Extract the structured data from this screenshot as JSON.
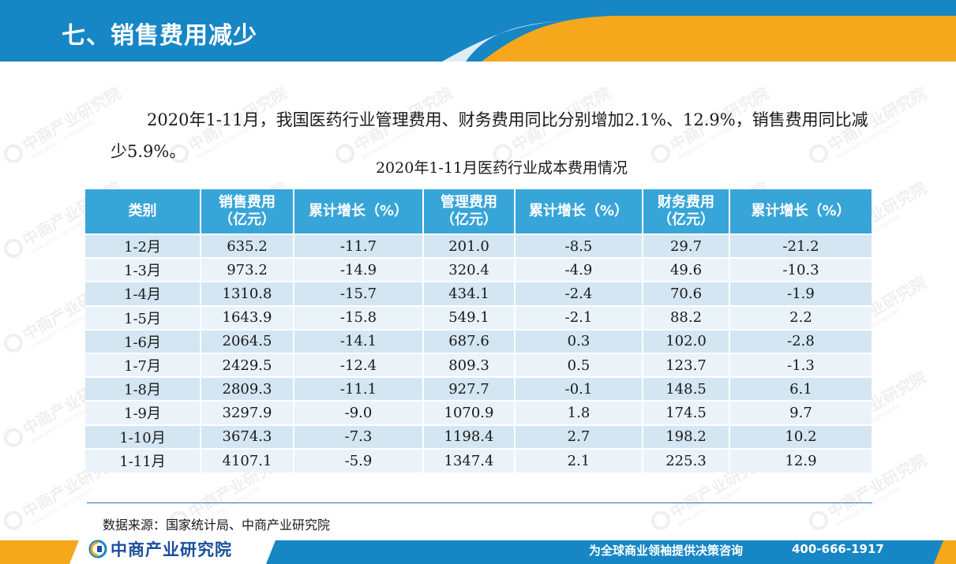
{
  "header": {
    "title": "七、销售费用减少"
  },
  "intro": {
    "text": "2020年1-11月，我国医药行业管理费用、财务费用同比分别增加2.1%、12.9%，销售费用同比减少5.9%。"
  },
  "table": {
    "caption": "2020年1-11月医药行业成本费用情况",
    "headers": [
      "类别",
      "销售费用\n（亿元）",
      "累计增长（%）",
      "管理费用\n（亿元）",
      "累计增长（%）",
      "财务费用\n（亿元）",
      "累计增长（%）"
    ],
    "rows": [
      [
        "1-2月",
        "635.2",
        "-11.7",
        "201.0",
        "-8.5",
        "29.7",
        "-21.2"
      ],
      [
        "1-3月",
        "973.2",
        "-14.9",
        "320.4",
        "-4.9",
        "49.6",
        "-10.3"
      ],
      [
        "1-4月",
        "1310.8",
        "-15.7",
        "434.1",
        "-2.4",
        "70.6",
        "-1.9"
      ],
      [
        "1-5月",
        "1643.9",
        "-15.8",
        "549.1",
        "-2.1",
        "88.2",
        "2.2"
      ],
      [
        "1-6月",
        "2064.5",
        "-14.1",
        "687.6",
        "0.3",
        "102.0",
        "-2.8"
      ],
      [
        "1-7月",
        "2429.5",
        "-12.4",
        "809.3",
        "0.5",
        "123.7",
        "-1.3"
      ],
      [
        "1-8月",
        "2809.3",
        "-11.1",
        "927.7",
        "-0.1",
        "148.5",
        "6.1"
      ],
      [
        "1-9月",
        "3297.9",
        "-9.0",
        "1070.9",
        "1.8",
        "174.5",
        "9.7"
      ],
      [
        "1-10月",
        "3674.3",
        "-7.3",
        "1198.4",
        "2.7",
        "198.2",
        "10.2"
      ],
      [
        "1-11月",
        "4107.1",
        "-5.9",
        "1347.4",
        "2.1",
        "225.3",
        "12.9"
      ]
    ]
  },
  "source": {
    "text": "数据来源：国家统计局、中商产业研究院"
  },
  "footer": {
    "logo_text": "中商产业研究院",
    "slogan": "为全球商业领袖提供决策咨询",
    "phone": "400-666-1917"
  },
  "watermark": {
    "text": "中商产业研究院",
    "sub": "www.askci.com/reports"
  },
  "colors": {
    "header_blue": "#1786c4",
    "header_orange": "#f5a81c",
    "table_header": "#38a5d8",
    "row_odd": "#d3e6f1",
    "row_even": "#eaf3f9",
    "logo_blue": "#1a4f9c"
  },
  "icons": {
    "logo": "askci-logo-icon"
  }
}
